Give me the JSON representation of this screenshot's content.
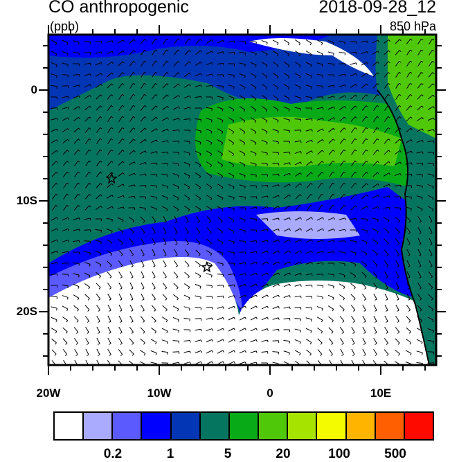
{
  "header": {
    "title": "CO anthropogenic",
    "units": "(ppb)",
    "datetime": "2018-09-28_12",
    "level": "850 hPa"
  },
  "axes": {
    "lat_labels": [
      "0",
      "10S",
      "20S"
    ],
    "lon_labels": [
      "20W",
      "10W",
      "0",
      "10E"
    ],
    "lat_range": [
      -25,
      5
    ],
    "lon_range": [
      -20,
      15
    ]
  },
  "markers": [
    {
      "name": "star",
      "lon": -14.3,
      "lat": -8
    },
    {
      "name": "star",
      "lon": -5.7,
      "lat": -16
    }
  ],
  "colorbar": {
    "colors": [
      "#ffffff",
      "#aaaaff",
      "#5a5aff",
      "#0000ff",
      "#0336b4",
      "#067560",
      "#08aa18",
      "#50c80a",
      "#a6e400",
      "#f4fa00",
      "#ffb400",
      "#ff5f00",
      "#ff0a00"
    ],
    "labels": [
      "0.2",
      "1",
      "5",
      "20",
      "100",
      "500"
    ]
  }
}
